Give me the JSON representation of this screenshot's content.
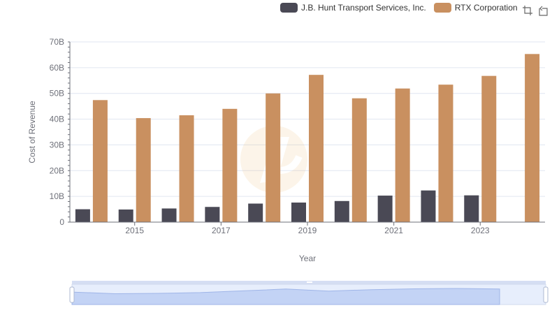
{
  "legend": {
    "items": [
      {
        "label": "J.B. Hunt Transport Services, Inc.",
        "color": "#4a4955"
      },
      {
        "label": "RTX Corporation",
        "color": "#c99060"
      }
    ]
  },
  "toolbox": {
    "icons": [
      "zoom-icon",
      "restore-icon"
    ]
  },
  "chart_data": {
    "type": "bar",
    "xlabel": "Year",
    "ylabel": "Cost of Revenue",
    "categories": [
      "2014",
      "2015",
      "2016",
      "2017",
      "2018",
      "2019",
      "2020",
      "2021",
      "2022",
      "2023",
      "2024"
    ],
    "x_tick_labels": [
      "2015",
      "2017",
      "2019",
      "2021",
      "2023"
    ],
    "y_ticks": [
      "0",
      "10B",
      "20B",
      "30B",
      "40B",
      "50B",
      "60B",
      "70B"
    ],
    "ylim": [
      0,
      70
    ],
    "unit": "B",
    "series": [
      {
        "name": "J.B. Hunt Transport Services, Inc.",
        "color": "#4a4955",
        "values": [
          5.0,
          4.9,
          5.3,
          5.9,
          7.2,
          7.6,
          8.2,
          10.3,
          12.3,
          10.4,
          null
        ]
      },
      {
        "name": "RTX Corporation",
        "color": "#c99060",
        "values": [
          47.4,
          40.4,
          41.5,
          44.0,
          50.0,
          57.2,
          48.1,
          51.9,
          53.4,
          56.8,
          65.3
        ]
      }
    ],
    "legend_position": "top-right",
    "grid": true,
    "data_zoom": {
      "range": [
        0,
        100
      ]
    }
  }
}
